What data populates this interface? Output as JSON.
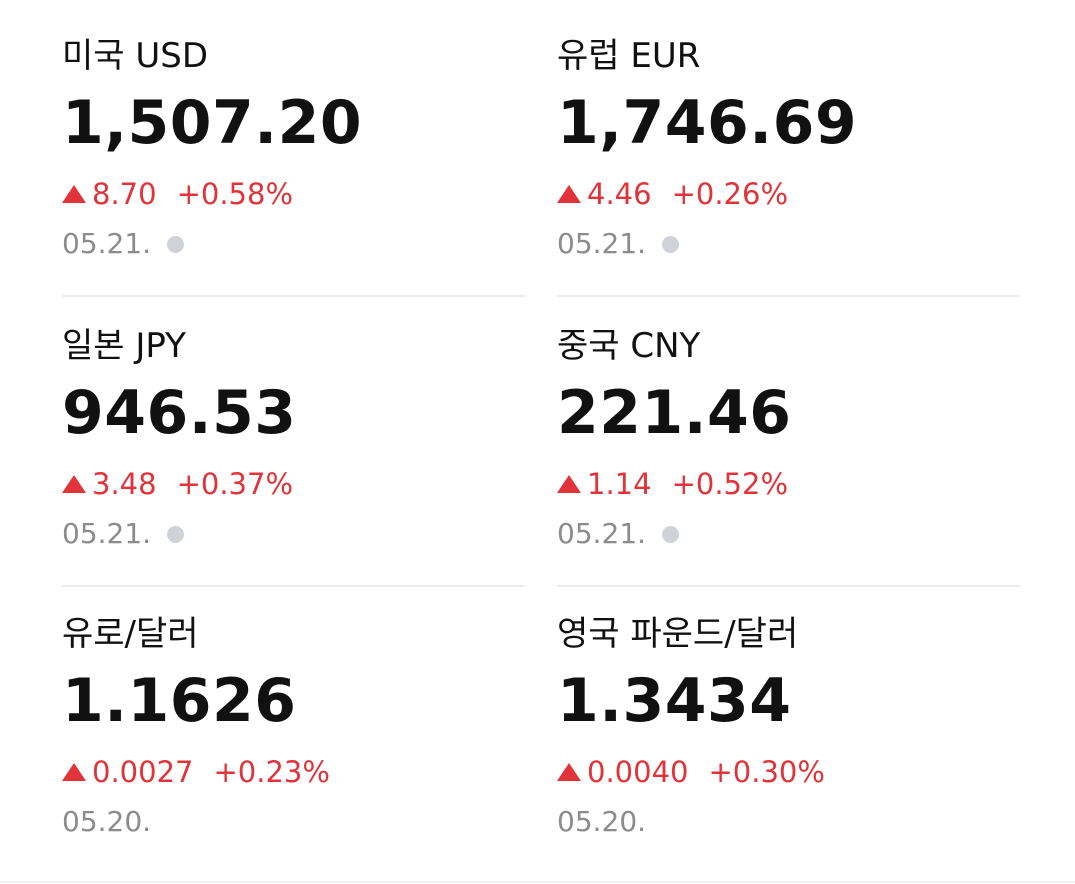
{
  "items": [
    {
      "name": "미국 USD",
      "price": "1,507.20",
      "change": "8.70",
      "percent": "+0.58%",
      "date": "05.21."
    },
    {
      "name": "유럽 EUR",
      "price": "1,746.69",
      "change": "4.46",
      "percent": "+0.26%",
      "date": "05.21."
    },
    {
      "name": "일본 JPY",
      "price": "946.53",
      "change": "3.48",
      "percent": "+0.37%",
      "date": "05.21."
    },
    {
      "name": "중국 CNY",
      "price": "221.46",
      "change": "1.14",
      "percent": "+0.52%",
      "date": "05.21."
    },
    {
      "name": "유로/달러",
      "price": "1.1626",
      "change": "0.0027",
      "percent": "+0.23%",
      "date": "05.20."
    },
    {
      "name": "영국 파운드/달러",
      "price": "1.3434",
      "change": "0.0040",
      "percent": "+0.30%",
      "date": "05.20."
    }
  ]
}
